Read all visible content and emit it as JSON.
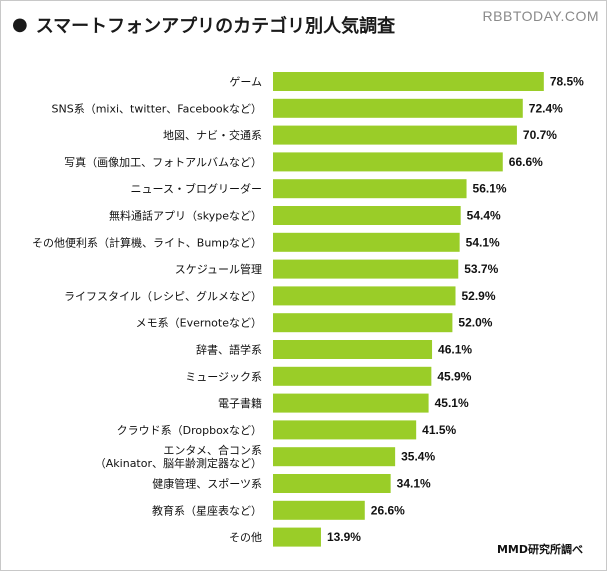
{
  "header": {
    "bullet": "●",
    "title": "スマートフォンアプリのカテゴリ別人気調査",
    "watermark": "RBBTODAY.COM"
  },
  "footer": {
    "source": "MMD研究所調べ"
  },
  "colors": {
    "bar": "#9acd28"
  },
  "chart_data": {
    "type": "bar",
    "orientation": "horizontal",
    "title": "スマートフォンアプリのカテゴリ別人気調査",
    "value_suffix": "%",
    "categories": [
      "ゲーム",
      "SNS系（mixi、twitter、Facebookなど）",
      "地図、ナビ・交通系",
      "写真（画像加工、フォトアルバムなど）",
      "ニュース・ブログリーダー",
      "無料通話アプリ（skypeなど）",
      "その他便利系（計算機、ライト、Bumpなど）",
      "スケジュール管理",
      "ライフスタイル（レシピ、グルメなど）",
      "メモ系（Evernoteなど）",
      "辞書、語学系",
      "ミュージック系",
      "電子書籍",
      "クラウド系（Dropboxなど）",
      "エンタメ、合コン系\n（Akinator、脳年齢測定器など）",
      "健康管理、スポーツ系",
      "教育系（星座表など）",
      "その他"
    ],
    "values": [
      78.5,
      72.4,
      70.7,
      66.6,
      56.1,
      54.4,
      54.1,
      53.7,
      52.9,
      52.0,
      46.1,
      45.9,
      45.1,
      41.5,
      35.4,
      34.1,
      26.6,
      13.9
    ]
  }
}
